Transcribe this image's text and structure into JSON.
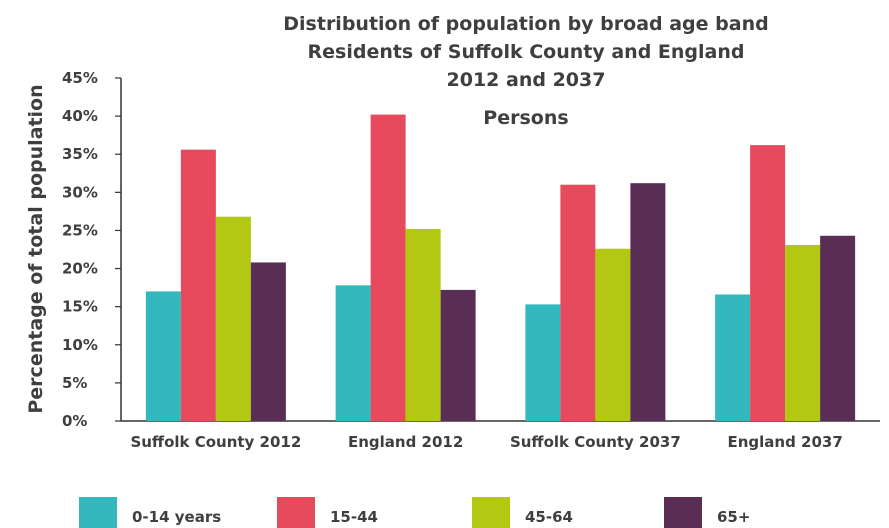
{
  "chart_data": {
    "type": "bar",
    "title_lines": [
      "Distribution of population by broad age band",
      "Residents of Suffolk County and England",
      "2012 and 2037",
      "Persons"
    ],
    "ylabel": "Percentage of total population",
    "xlabel": "",
    "categories": [
      "Suffolk County 2012",
      "England 2012",
      "Suffolk County 2037",
      "England 2037"
    ],
    "series": [
      {
        "name": "0-14 years",
        "color": "#33b8bd",
        "values": [
          17.0,
          17.8,
          15.3,
          16.6
        ]
      },
      {
        "name": "15-44",
        "color": "#e64a5c",
        "values": [
          35.6,
          40.2,
          31.0,
          36.2
        ]
      },
      {
        "name": "45-64",
        "color": "#b3c813",
        "values": [
          26.8,
          25.2,
          22.6,
          23.1
        ]
      },
      {
        "name": "65+",
        "color": "#5a2d54",
        "values": [
          20.8,
          17.2,
          31.2,
          24.3
        ]
      }
    ],
    "ylim": [
      0,
      45
    ],
    "yticks": [
      0,
      5,
      10,
      15,
      20,
      25,
      30,
      35,
      40,
      45
    ],
    "ytick_labels": [
      "0%",
      "5%",
      "10%",
      "15%",
      "20%",
      "25%",
      "30%",
      "35%",
      "40%",
      "45%"
    ],
    "grid": false,
    "legend_position": "bottom"
  }
}
